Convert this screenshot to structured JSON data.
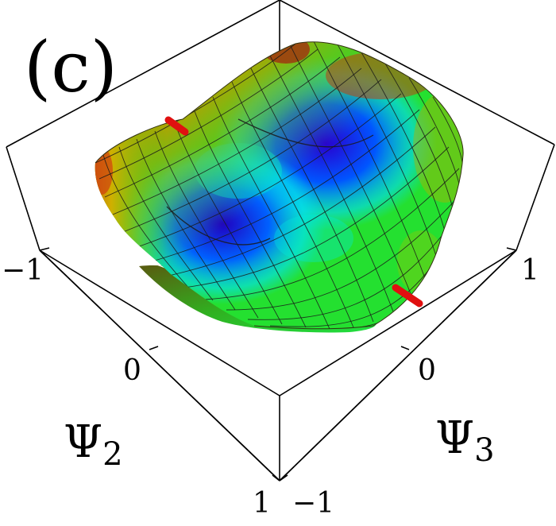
{
  "panel_label": "(c)",
  "chart_data": {
    "type": "surface-3d",
    "x_axis": {
      "symbol": "Ψ",
      "subscript": "2",
      "ticks": [
        "−1",
        "0",
        "1"
      ]
    },
    "y_axis": {
      "symbol": "Ψ",
      "subscript": "3",
      "ticks": [
        "−1",
        "0",
        "1"
      ]
    },
    "grid": true,
    "colormap": [
      "#2000c8",
      "#0050ff",
      "#00e6ff",
      "#20e040",
      "#c8d000",
      "#c03010"
    ],
    "markers": [
      {
        "color": "#e01010"
      },
      {
        "color": "#e01010"
      }
    ]
  }
}
